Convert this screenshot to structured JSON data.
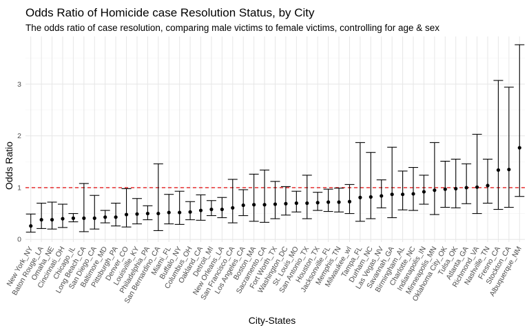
{
  "chart_data": {
    "type": "scatter",
    "title": "Odds Ratio of Homicide case Resolution Status, by City",
    "subtitle": "The odds ratio of case resolution, comparing male victims to female victims, controlling for age & sex",
    "xlabel": "City-States",
    "ylabel": "Odds Ratio",
    "ylim": [
      -0.05,
      3.92
    ],
    "yticks": [
      0,
      1,
      2,
      3
    ],
    "grid": true,
    "reference_line": {
      "y": 1,
      "color": "#e41a1c",
      "style": "dashed"
    },
    "point_color": "#000000",
    "errorbar_color": "#000000",
    "categories": [
      "New York_NY",
      "Baton Rouge_LA",
      "Omaha_NE",
      "Cincinnati_OH",
      "Chicago_IL",
      "Long Beach_CA",
      "San Diego_CA",
      "Baltimore_MD",
      "Pittsburgh_PA",
      "Denver_CO",
      "Louisville_KY",
      "Philadelphia_PA",
      "San Bernardino_CA",
      "Miami_FL",
      "Buffalo_NY",
      "Columbus_OH",
      "Oakland_CA",
      "Detroit_MI",
      "New Orleans_LA",
      "San Francisco_CA",
      "Los Angeles_CA",
      "Boston_MA",
      "Sacramento_CA",
      "Fort Worth_TX",
      "Washington_DC",
      "St. Louis_MO",
      "San Antonio_TX",
      "Houston_TX",
      "Jacksonville_FL",
      "Memphis_TN",
      "Milwaukee_wI",
      "Tampa_FL",
      "Durham_NC",
      "Las Vegas_NV",
      "Savannah_GA",
      "Birmingham_AL",
      "Charlotte_NC",
      "Indianapolis_IN",
      "Minneapolis_MN",
      "Oklahoma City_OK",
      "Tulsa_OK",
      "Atlanta_GA",
      "Richmond_VA",
      "Nashville_TN",
      "Fresno_CA",
      "Stockton_CA",
      "Albuquerque_NM"
    ],
    "values": [
      0.26,
      0.38,
      0.38,
      0.4,
      0.41,
      0.41,
      0.41,
      0.43,
      0.43,
      0.48,
      0.49,
      0.5,
      0.5,
      0.52,
      0.52,
      0.53,
      0.56,
      0.58,
      0.58,
      0.61,
      0.66,
      0.67,
      0.67,
      0.68,
      0.69,
      0.7,
      0.7,
      0.71,
      0.72,
      0.72,
      0.73,
      0.81,
      0.82,
      0.84,
      0.87,
      0.87,
      0.88,
      0.92,
      0.95,
      0.97,
      0.98,
      1.0,
      1.01,
      1.04,
      1.34,
      1.35,
      1.77
    ],
    "ci_low": [
      0.14,
      0.21,
      0.2,
      0.23,
      0.34,
      0.15,
      0.2,
      0.32,
      0.26,
      0.24,
      0.3,
      0.38,
      0.17,
      0.3,
      0.29,
      0.38,
      0.37,
      0.46,
      0.42,
      0.32,
      0.46,
      0.35,
      0.33,
      0.4,
      0.47,
      0.53,
      0.4,
      0.56,
      0.54,
      0.53,
      0.5,
      0.35,
      0.4,
      0.61,
      0.42,
      0.57,
      0.56,
      0.68,
      0.48,
      0.62,
      0.61,
      0.69,
      0.5,
      0.7,
      0.58,
      0.62,
      0.83
    ],
    "ci_high": [
      0.49,
      0.7,
      0.72,
      0.68,
      0.5,
      1.08,
      0.85,
      0.56,
      0.7,
      0.98,
      0.79,
      0.65,
      1.46,
      0.87,
      0.93,
      0.73,
      0.86,
      0.75,
      0.81,
      1.16,
      0.96,
      1.26,
      1.34,
      1.12,
      1.02,
      0.93,
      1.24,
      0.91,
      0.97,
      0.99,
      1.06,
      1.87,
      1.68,
      1.15,
      1.78,
      1.32,
      1.39,
      1.24,
      1.87,
      1.51,
      1.55,
      1.46,
      2.03,
      1.55,
      3.07,
      2.94,
      3.76
    ]
  }
}
